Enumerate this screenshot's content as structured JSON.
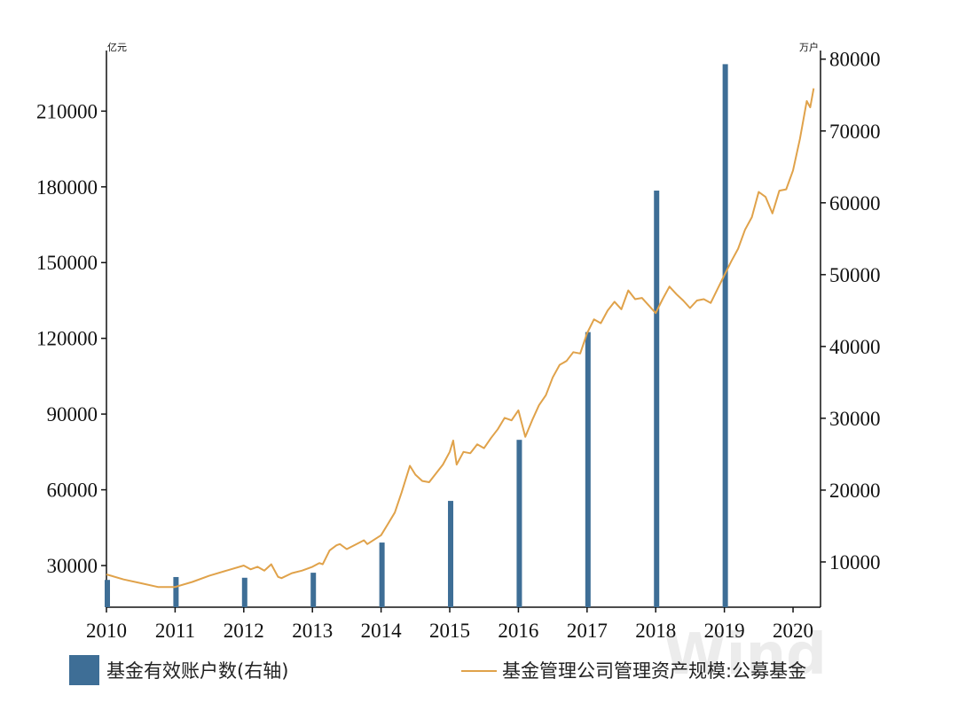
{
  "chart_data": {
    "type": "bar+line",
    "left_axis": {
      "unit": "亿元",
      "ticks": [
        30000,
        60000,
        90000,
        120000,
        150000,
        180000,
        210000
      ],
      "ylim": [
        13500,
        234000
      ]
    },
    "right_axis": {
      "unit": "万户",
      "ticks": [
        10000,
        20000,
        30000,
        40000,
        50000,
        60000,
        70000,
        80000
      ],
      "ylim": [
        3700,
        81200
      ]
    },
    "x_axis": {
      "ticks": [
        "2010",
        "2011",
        "2012",
        "2013",
        "2014",
        "2015",
        "2016",
        "2017",
        "2018",
        "2019",
        "2020"
      ],
      "xlim": [
        2010,
        2020.4
      ]
    },
    "bar_series": {
      "name": "基金有效账户数(右轴)",
      "axis": "right",
      "color": "#3e6e96",
      "x": [
        2010,
        2011,
        2012,
        2013,
        2014,
        2015,
        2016,
        2017,
        2018,
        2019
      ],
      "values": [
        7500,
        7900,
        7800,
        8500,
        12700,
        18500,
        27000,
        42000,
        61700,
        79300
      ]
    },
    "line_series": {
      "name": "基金管理公司管理资产规模:公募基金",
      "axis": "left",
      "color": "#e0a24a",
      "x": [
        2010.0,
        2010.25,
        2010.5,
        2010.75,
        2011.0,
        2011.25,
        2011.5,
        2011.75,
        2012.0,
        2012.1,
        2012.2,
        2012.3,
        2012.4,
        2012.5,
        2012.55,
        2012.7,
        2012.85,
        2013.0,
        2013.1,
        2013.15,
        2013.25,
        2013.35,
        2013.4,
        2013.5,
        2013.75,
        2013.8,
        2014.0,
        2014.1,
        2014.2,
        2014.3,
        2014.42,
        2014.5,
        2014.6,
        2014.7,
        2014.8,
        2014.9,
        2015.0,
        2015.05,
        2015.1,
        2015.2,
        2015.3,
        2015.4,
        2015.5,
        2015.6,
        2015.7,
        2015.8,
        2015.9,
        2016.0,
        2016.1,
        2016.2,
        2016.3,
        2016.4,
        2016.5,
        2016.6,
        2016.7,
        2016.8,
        2016.9,
        2017.0,
        2017.1,
        2017.2,
        2017.3,
        2017.4,
        2017.5,
        2017.6,
        2017.7,
        2017.8,
        2017.9,
        2018.0,
        2018.1,
        2018.2,
        2018.3,
        2018.4,
        2018.5,
        2018.6,
        2018.7,
        2018.8,
        2018.9,
        2019.0,
        2019.1,
        2019.2,
        2019.3,
        2019.4,
        2019.5,
        2019.6,
        2019.7,
        2019.8,
        2019.9,
        2020.0,
        2020.1,
        2020.2,
        2020.25,
        2020.3
      ],
      "values": [
        26500,
        24500,
        23000,
        21500,
        21500,
        23500,
        26000,
        28000,
        30000,
        28500,
        29500,
        28000,
        30500,
        25500,
        25000,
        27000,
        28000,
        29500,
        31000,
        30500,
        36000,
        38000,
        38500,
        36500,
        40000,
        38500,
        42000,
        46500,
        51000,
        59000,
        69500,
        66000,
        63500,
        63000,
        66500,
        70000,
        75000,
        79500,
        70000,
        75000,
        74500,
        78000,
        76500,
        80500,
        84000,
        88500,
        87500,
        91500,
        81000,
        87500,
        93500,
        97500,
        104500,
        109500,
        111000,
        114500,
        114000,
        122000,
        127500,
        126000,
        131000,
        134500,
        131500,
        139000,
        135500,
        136000,
        133000,
        130000,
        135500,
        140500,
        137500,
        135000,
        132000,
        135000,
        135500,
        134000,
        139500,
        145000,
        150500,
        155500,
        163000,
        168000,
        178000,
        176000,
        169500,
        178500,
        179000,
        186500,
        199000,
        214000,
        211500,
        219000
      ]
    },
    "legend": [
      {
        "label": "基金有效账户数(右轴)",
        "kind": "bar"
      },
      {
        "label": "基金管理公司管理资产规模:公募基金",
        "kind": "line"
      }
    ],
    "legend_placement": "bottom",
    "grid": false
  }
}
